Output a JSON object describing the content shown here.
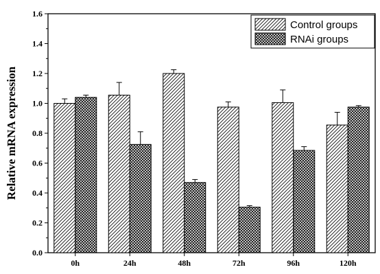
{
  "chart_data": {
    "type": "bar",
    "categories": [
      "0h",
      "24h",
      "48h",
      "72h",
      "96h",
      "120h"
    ],
    "series": [
      {
        "name": "Control groups",
        "values": [
          1.0,
          1.055,
          1.2,
          0.975,
          1.005,
          0.855
        ],
        "errors": [
          0.03,
          0.085,
          0.025,
          0.035,
          0.085,
          0.085
        ],
        "pattern": "diagonal-hatch"
      },
      {
        "name": "RNAi groups",
        "values": [
          1.04,
          0.725,
          0.47,
          0.305,
          0.685,
          0.975
        ],
        "errors": [
          0.015,
          0.085,
          0.02,
          0.01,
          0.025,
          0.01
        ],
        "pattern": "crosshatch"
      }
    ],
    "xlabel": "",
    "ylabel": "Relative mRNA expression",
    "ylim": [
      0,
      1.6
    ],
    "yticks": [
      "0.0",
      "0.2",
      "0.4",
      "0.6",
      "0.8",
      "1.0",
      "1.2",
      "1.4",
      "1.6"
    ],
    "grid": false,
    "legend_position": "top-right",
    "bar_color": "#ffffff",
    "line_color": "#000000"
  }
}
